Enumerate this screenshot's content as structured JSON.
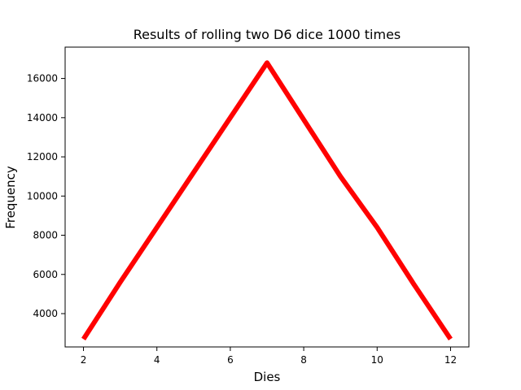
{
  "chart_data": {
    "type": "line",
    "title": "Results of rolling two D6 dice 1000 times",
    "xlabel": "Dies",
    "ylabel": "Frequency",
    "x": [
      2,
      3,
      4,
      5,
      6,
      7,
      8,
      9,
      10,
      11,
      12
    ],
    "series": [
      {
        "values": [
          2700,
          5600,
          8400,
          11200,
          14000,
          16800,
          13900,
          11000,
          8400,
          5500,
          2700
        ],
        "color": "#ff0000"
      }
    ],
    "xlim": [
      1.5,
      12.5
    ],
    "ylim": [
      2300,
      17600
    ],
    "xticks": [
      2,
      4,
      6,
      8,
      10,
      12
    ],
    "yticks": [
      4000,
      6000,
      8000,
      10000,
      12000,
      14000,
      16000
    ],
    "grid": false,
    "legend": "none"
  }
}
